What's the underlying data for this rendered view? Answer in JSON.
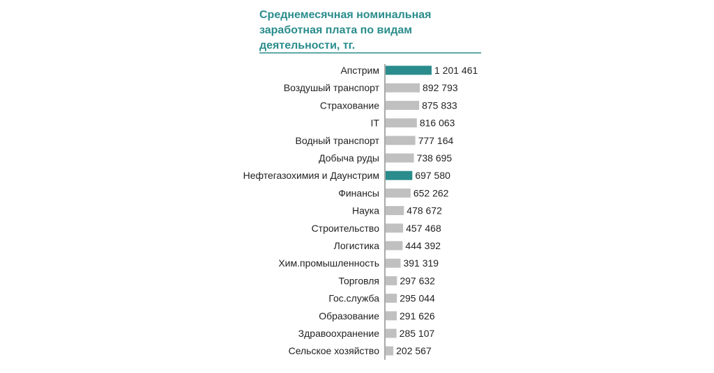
{
  "chart_data": {
    "type": "bar",
    "orientation": "horizontal",
    "title_lines": [
      "Среднемесячная номинальная",
      "заработная плата по видам",
      "деятельности, тг."
    ],
    "categories": [
      "Апстрим",
      "Воздушый транспорт",
      "Страхование",
      "IT",
      "Водный транспорт",
      "Добыча руды",
      "Нефтегазохимия  и Даунстрим",
      "Финансы",
      "Наука",
      "Строительство",
      "Логистика",
      "Хим.промышленность",
      "Торговля",
      "Гос.служба",
      "Образование",
      "Здравоохранение",
      "Сельское хозяйство"
    ],
    "values": [
      1201461,
      892793,
      875833,
      816063,
      777164,
      738695,
      697580,
      652262,
      478672,
      457468,
      444392,
      391319,
      297632,
      295044,
      291626,
      285107,
      202567
    ],
    "value_labels": [
      "1 201 461",
      "892 793",
      "875 833",
      "816 063",
      "777 164",
      "738 695",
      "697 580",
      "652 262",
      "478 672",
      "457 468",
      "444 392",
      "391 319",
      "297 632",
      "295 044",
      "291 626",
      "285 107",
      "202 567"
    ],
    "highlighted": [
      "Апстрим",
      "Нефтегазохимия  и Даунстрим"
    ],
    "colors": {
      "highlight": "#2a8c8c",
      "default": "#c0c0c0",
      "title": "#2a8c8c",
      "axis": "#555555",
      "rule": "#2a8c8c"
    },
    "xlim": [
      0,
      1201461
    ],
    "grid": false,
    "legend": "none"
  }
}
